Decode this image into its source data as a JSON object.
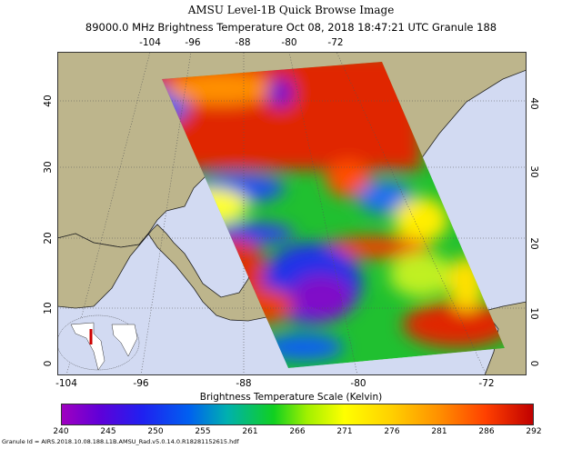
{
  "title": "AMSU Level-1B Quick Browse Image",
  "subtitle": "89000.0 MHz Brightness Temperature   Oct 08, 2018 18:47:21 UTC   Granule 188",
  "map": {
    "top_longitude_labels": [
      "-104",
      "-96",
      "-88",
      "-80",
      "-72"
    ],
    "bottom_longitude_labels": [
      "-104",
      "-96",
      "-88",
      "-80",
      "-72"
    ],
    "latitude_labels": [
      "40",
      "30",
      "20",
      "10",
      "0"
    ],
    "colors": {
      "land": "#bdb58c",
      "ocean": "#d2daf2"
    },
    "inset": "world-locator-map"
  },
  "colorbar": {
    "title": "Brightness Temperature Scale (Kelvin)",
    "labels": [
      "240",
      "245",
      "250",
      "255",
      "261",
      "266",
      "271",
      "276",
      "281",
      "286",
      "292"
    ],
    "range": [
      240,
      292
    ]
  },
  "granule_id": "Granule Id = AIRS.2018.10.08.188.L1B.AMSU_Rad.v5.0.14.0.R18281152615.hdf"
}
